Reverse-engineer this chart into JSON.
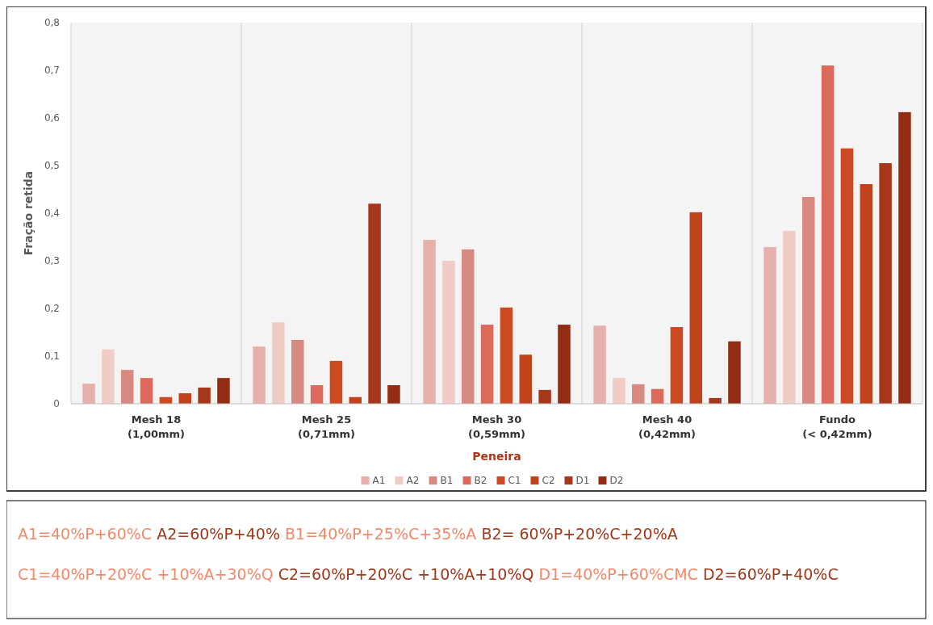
{
  "chart_data": {
    "type": "bar",
    "xlabel": "Peneira",
    "ylabel": "Fração retida",
    "categories": [
      "Mesh 18\n(1,00mm)",
      "Mesh 25\n(0,71mm)",
      "Mesh 30\n(0,59mm)",
      "Mesh 40\n(0,42mm)",
      "Fundo\n(< 0,42mm)"
    ],
    "series": [
      {
        "name": "A1",
        "color": "#e6b1ab",
        "values": [
          0.042,
          0.12,
          0.344,
          0.164,
          0.329
        ]
      },
      {
        "name": "A2",
        "color": "#f1cbc6",
        "values": [
          0.114,
          0.171,
          0.3,
          0.054,
          0.363
        ]
      },
      {
        "name": "B1",
        "color": "#d98a80",
        "values": [
          0.071,
          0.134,
          0.324,
          0.041,
          0.434
        ]
      },
      {
        "name": "B2",
        "color": "#dc6a5c",
        "values": [
          0.054,
          0.039,
          0.166,
          0.031,
          0.71
        ]
      },
      {
        "name": "C1",
        "color": "#cc4a22",
        "values": [
          0.014,
          0.09,
          0.202,
          0.161,
          0.536
        ]
      },
      {
        "name": "C2",
        "color": "#c0431c",
        "values": [
          0.022,
          0.014,
          0.103,
          0.402,
          0.461
        ]
      },
      {
        "name": "D1",
        "color": "#a8361a",
        "values": [
          0.034,
          0.42,
          0.029,
          0.012,
          0.505
        ]
      },
      {
        "name": "D2",
        "color": "#922c13",
        "values": [
          0.054,
          0.039,
          0.166,
          0.131,
          0.612
        ]
      }
    ],
    "ylim": [
      0,
      0.8
    ],
    "yticks": [
      0,
      {
        "value": 0.1,
        "label": "0,1"
      },
      {
        "value": 0.2,
        "label": "0,2"
      },
      {
        "value": 0.3,
        "label": "0,3"
      },
      {
        "value": 0.4,
        "label": "0,4"
      },
      {
        "value": 0.5,
        "label": "0,5"
      },
      {
        "value": 0.6,
        "label": "0,6"
      },
      {
        "value": 0.7,
        "label": "0,7"
      },
      {
        "value": 0.8,
        "label": "0,8"
      }
    ],
    "grid": "x",
    "legend": "bottom",
    "annotations": [
      "A1=40%P+60%C",
      "A2=60%P+40%",
      "B1=40%P+25%C+35%A",
      "B2= 60%P+20%C+20%A",
      "C1=40%P+20%C +10%A+30%Q",
      "C2=60%P+20%C +10%A+10%Q",
      "D1=40%P+60%CMC",
      "D2=60%P+40%C"
    ]
  }
}
